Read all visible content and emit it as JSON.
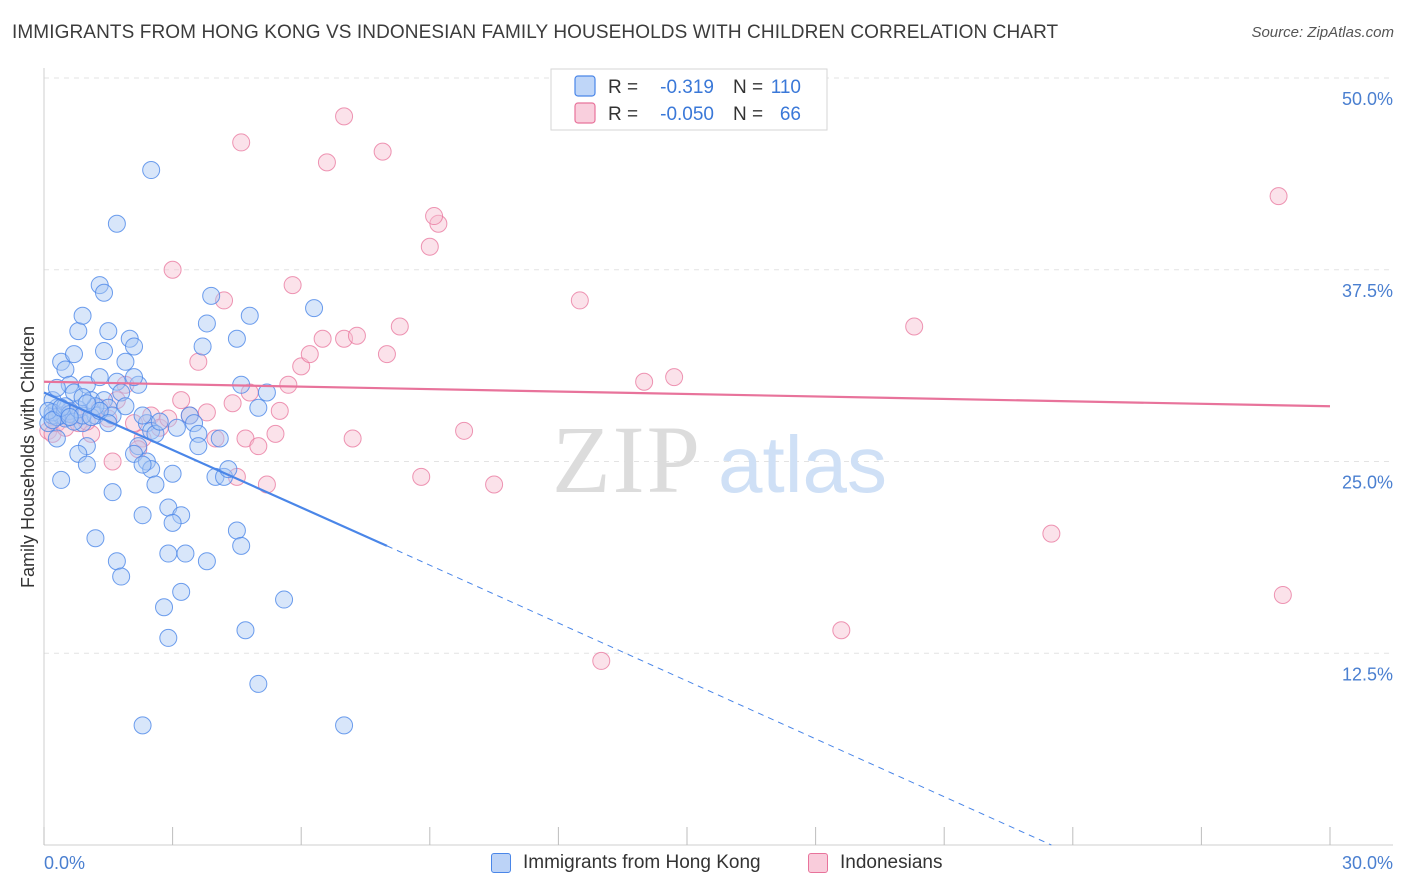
{
  "title": "IMMIGRANTS FROM HONG KONG VS INDONESIAN FAMILY HOUSEHOLDS WITH CHILDREN CORRELATION CHART",
  "source": "Source: ZipAtlas.com",
  "watermark": {
    "zip": "ZIP",
    "atlas": "atlas"
  },
  "colors": {
    "blue": "#4a86e8",
    "blue_fill": "#a9c8f5",
    "pink": "#e8739b",
    "pink_fill": "#f7bfd1",
    "axis_label": "#4a7fd0",
    "grid": "#e3e3e3"
  },
  "legend": {
    "rows": [
      {
        "r_label": "R =",
        "r_value": "-0.319",
        "n_label": "N =",
        "n_value": "110"
      },
      {
        "r_label": "R =",
        "r_value": "-0.050",
        "n_label": "N =",
        "n_value": "66"
      }
    ]
  },
  "bottom_legend": [
    "Immigrants from Hong Kong",
    "Indonesians"
  ],
  "chart_data": {
    "type": "scatter",
    "xlabel": "",
    "ylabel": "Family Households with Children",
    "xlim": [
      0,
      30
    ],
    "ylim": [
      0,
      50
    ],
    "x_tick_labels": [
      "0.0%",
      "30.0%"
    ],
    "y_ticks": [
      12.5,
      25.0,
      37.5,
      50.0
    ],
    "y_tick_labels": [
      "12.5%",
      "25.0%",
      "37.5%",
      "50.0%"
    ],
    "grid": true,
    "legend_position": "top-center",
    "series": [
      {
        "name": "Immigrants from Hong Kong",
        "color": "#4a86e8",
        "trend": {
          "x0": 0.0,
          "y0": 29.5,
          "x1_solid": 8.0,
          "y1_solid": 19.5,
          "x1_dashed": 23.5,
          "y1_dashed": 0.0
        },
        "points": [
          [
            0.1,
            27.5
          ],
          [
            0.2,
            28.0
          ],
          [
            0.3,
            28.5
          ],
          [
            0.2,
            29.0
          ],
          [
            0.4,
            28.0
          ],
          [
            0.5,
            27.8
          ],
          [
            0.3,
            26.5
          ],
          [
            0.6,
            28.3
          ],
          [
            0.4,
            31.5
          ],
          [
            0.5,
            31.0
          ],
          [
            0.6,
            30.0
          ],
          [
            0.7,
            32.0
          ],
          [
            0.8,
            33.5
          ],
          [
            0.9,
            34.5
          ],
          [
            0.7,
            29.5
          ],
          [
            1.0,
            30.0
          ],
          [
            1.1,
            29.0
          ],
          [
            0.9,
            27.5
          ],
          [
            1.2,
            28.0
          ],
          [
            1.0,
            26.0
          ],
          [
            0.8,
            25.5
          ],
          [
            1.0,
            24.8
          ],
          [
            0.4,
            23.8
          ],
          [
            1.3,
            30.5
          ],
          [
            1.4,
            29.0
          ],
          [
            1.5,
            28.5
          ],
          [
            1.6,
            28.0
          ],
          [
            1.7,
            30.2
          ],
          [
            1.8,
            29.5
          ],
          [
            1.9,
            31.5
          ],
          [
            2.0,
            33.0
          ],
          [
            2.1,
            32.5
          ],
          [
            1.5,
            33.5
          ],
          [
            1.3,
            36.5
          ],
          [
            1.4,
            36.0
          ],
          [
            1.7,
            40.5
          ],
          [
            2.5,
            44.0
          ],
          [
            2.2,
            30.0
          ],
          [
            2.4,
            27.5
          ],
          [
            2.3,
            28.0
          ],
          [
            2.5,
            27.0
          ],
          [
            2.6,
            26.8
          ],
          [
            2.2,
            26.0
          ],
          [
            2.1,
            25.5
          ],
          [
            2.4,
            25.0
          ],
          [
            2.5,
            24.5
          ],
          [
            2.6,
            23.5
          ],
          [
            3.0,
            24.2
          ],
          [
            2.9,
            22.0
          ],
          [
            3.2,
            21.5
          ],
          [
            3.4,
            28.0
          ],
          [
            3.5,
            27.5
          ],
          [
            3.6,
            26.8
          ],
          [
            4.1,
            26.5
          ],
          [
            4.0,
            24.0
          ],
          [
            4.2,
            24.0
          ],
          [
            3.7,
            32.5
          ],
          [
            3.8,
            34.0
          ],
          [
            3.9,
            35.8
          ],
          [
            4.5,
            33.0
          ],
          [
            4.6,
            30.0
          ],
          [
            4.8,
            34.5
          ],
          [
            5.0,
            28.5
          ],
          [
            5.2,
            29.5
          ],
          [
            6.3,
            35.0
          ],
          [
            4.3,
            24.5
          ],
          [
            4.5,
            20.5
          ],
          [
            4.6,
            19.5
          ],
          [
            3.8,
            18.5
          ],
          [
            3.3,
            19.0
          ],
          [
            2.9,
            19.0
          ],
          [
            3.2,
            16.5
          ],
          [
            2.8,
            15.5
          ],
          [
            2.9,
            13.5
          ],
          [
            4.7,
            14.0
          ],
          [
            5.0,
            10.5
          ],
          [
            2.3,
            7.8
          ],
          [
            7.0,
            7.8
          ],
          [
            5.6,
            16.0
          ],
          [
            1.7,
            18.5
          ],
          [
            1.8,
            17.5
          ],
          [
            1.2,
            20.0
          ],
          [
            1.6,
            23.0
          ],
          [
            2.3,
            21.5
          ],
          [
            3.0,
            21.0
          ],
          [
            0.2,
            28.2
          ],
          [
            0.3,
            27.9
          ],
          [
            0.5,
            28.6
          ],
          [
            0.6,
            28.1
          ],
          [
            0.7,
            27.6
          ],
          [
            0.8,
            28.4
          ],
          [
            0.9,
            28.0
          ],
          [
            1.1,
            27.9
          ],
          [
            1.2,
            28.6
          ],
          [
            1.3,
            28.3
          ],
          [
            1.5,
            27.5
          ],
          [
            0.1,
            28.3
          ],
          [
            0.2,
            27.7
          ],
          [
            0.4,
            28.5
          ],
          [
            0.6,
            27.9
          ],
          [
            0.9,
            29.2
          ],
          [
            1.0,
            28.8
          ],
          [
            2.3,
            24.8
          ],
          [
            2.7,
            27.6
          ],
          [
            3.1,
            27.2
          ],
          [
            3.6,
            26.0
          ],
          [
            2.1,
            30.5
          ],
          [
            1.9,
            28.6
          ],
          [
            1.4,
            32.2
          ],
          [
            0.3,
            29.8
          ]
        ]
      },
      {
        "name": "Indonesians",
        "color": "#e8739b",
        "trend": {
          "x0": 0.0,
          "y0": 30.2,
          "x1": 30.0,
          "y1": 28.6
        },
        "points": [
          [
            0.1,
            27.0
          ],
          [
            0.2,
            26.8
          ],
          [
            0.3,
            27.5
          ],
          [
            0.4,
            28.0
          ],
          [
            0.5,
            27.2
          ],
          [
            0.6,
            28.3
          ],
          [
            0.8,
            27.5
          ],
          [
            1.1,
            26.8
          ],
          [
            1.3,
            28.5
          ],
          [
            1.5,
            27.8
          ],
          [
            1.7,
            29.0
          ],
          [
            1.9,
            30.0
          ],
          [
            2.1,
            27.5
          ],
          [
            2.3,
            26.5
          ],
          [
            2.5,
            28.0
          ],
          [
            2.7,
            27.2
          ],
          [
            3.2,
            29.0
          ],
          [
            3.4,
            28.0
          ],
          [
            3.0,
            37.5
          ],
          [
            3.6,
            31.5
          ],
          [
            3.8,
            28.2
          ],
          [
            4.0,
            26.5
          ],
          [
            4.2,
            35.5
          ],
          [
            4.4,
            28.8
          ],
          [
            4.5,
            24.0
          ],
          [
            4.7,
            26.5
          ],
          [
            5.0,
            26.0
          ],
          [
            5.2,
            23.5
          ],
          [
            5.4,
            26.8
          ],
          [
            5.5,
            28.3
          ],
          [
            5.7,
            30.0
          ],
          [
            5.8,
            36.5
          ],
          [
            6.0,
            31.2
          ],
          [
            6.2,
            32.0
          ],
          [
            6.5,
            33.0
          ],
          [
            7.0,
            33.0
          ],
          [
            7.2,
            26.5
          ],
          [
            7.3,
            33.2
          ],
          [
            8.0,
            32.0
          ],
          [
            8.3,
            33.8
          ],
          [
            8.8,
            24.0
          ],
          [
            9.0,
            39.0
          ],
          [
            9.2,
            40.5
          ],
          [
            9.1,
            41.0
          ],
          [
            9.8,
            27.0
          ],
          [
            10.5,
            23.5
          ],
          [
            12.5,
            35.5
          ],
          [
            13.0,
            12.0
          ],
          [
            14.0,
            30.2
          ],
          [
            14.7,
            30.5
          ],
          [
            4.6,
            45.8
          ],
          [
            6.6,
            44.5
          ],
          [
            7.0,
            47.5
          ],
          [
            7.9,
            45.2
          ],
          [
            18.6,
            14.0
          ],
          [
            20.3,
            33.8
          ],
          [
            23.5,
            20.3
          ],
          [
            28.8,
            42.3
          ],
          [
            28.9,
            16.3
          ],
          [
            1.6,
            25.0
          ],
          [
            2.2,
            25.8
          ],
          [
            0.7,
            28.0
          ],
          [
            0.3,
            27.9
          ],
          [
            1.0,
            27.6
          ],
          [
            2.9,
            27.8
          ],
          [
            4.8,
            29.5
          ]
        ]
      }
    ]
  }
}
